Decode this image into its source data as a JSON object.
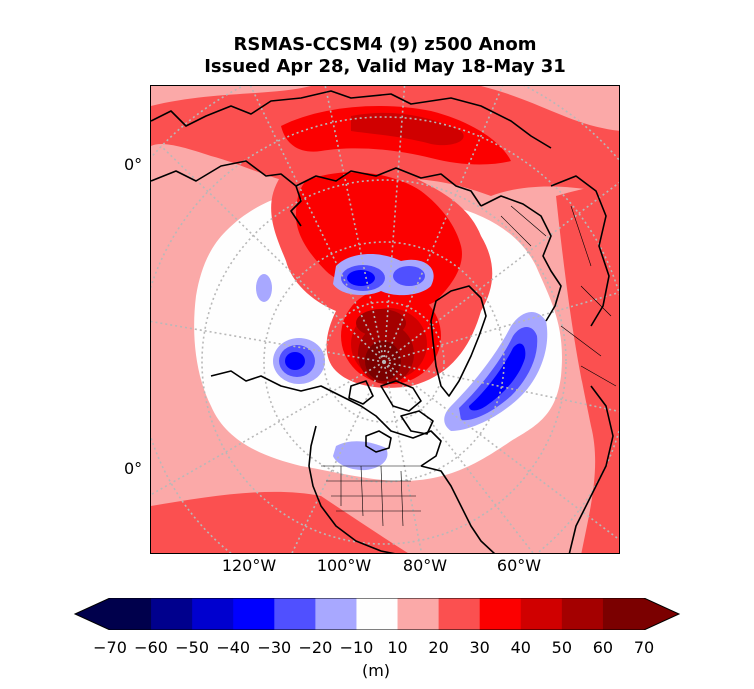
{
  "title": {
    "line1": "RSMAS-CCSM4 (9) z500 Anom",
    "line2": "Issued Apr 28, Valid May 18-May 31"
  },
  "map": {
    "lat_labels": [
      "0°",
      "0°"
    ],
    "lon_labels": [
      "120°W",
      "100°W",
      "80°W",
      "60°W"
    ]
  },
  "colorbar": {
    "levels": [
      -70,
      -60,
      -50,
      -40,
      -30,
      -20,
      -10,
      10,
      20,
      30,
      40,
      50,
      60,
      70
    ],
    "tick_labels": [
      "−70",
      "−60",
      "−50",
      "−40",
      "−30",
      "−20",
      "−10",
      "10",
      "20",
      "30",
      "40",
      "50",
      "60",
      "70"
    ],
    "colors": [
      "#00004c",
      "#00008d",
      "#0000cf",
      "#0000ff",
      "#5050ff",
      "#a8a8ff",
      "#fefefe",
      "#fba9a8",
      "#fb5050",
      "#fc0000",
      "#d00000",
      "#a40000",
      "#7b0000"
    ],
    "unit": "(m)"
  }
}
